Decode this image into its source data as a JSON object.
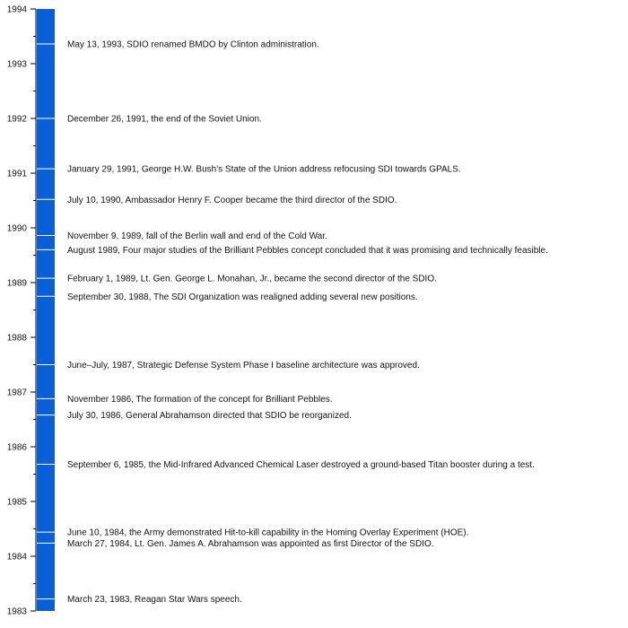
{
  "chart_data": {
    "type": "timeline",
    "title": "",
    "ylim": [
      1983,
      1994
    ],
    "bar_color": "#0a5fd6",
    "year_ticks": [
      "1983",
      "1984",
      "1985",
      "1986",
      "1987",
      "1988",
      "1989",
      "1990",
      "1991",
      "1992",
      "1993",
      "1994"
    ],
    "events": [
      {
        "date": 1993.36,
        "label": "May 13, 1993, SDIO renamed BMDO by Clinton administration."
      },
      {
        "date": 1992.0,
        "label": "December 26, 1991, the end of the Soviet Union."
      },
      {
        "date": 1991.08,
        "label": "January 29, 1991, George H.W. Bush's State of the Union address refocusing SDI towards GPALS."
      },
      {
        "date": 1990.52,
        "label": "July 10, 1990, Ambassador Henry F. Cooper became the third director of the SDIO."
      },
      {
        "date": 1989.86,
        "label": "November 9, 1989, fall of the Berlin wall and end of the Cold War."
      },
      {
        "date": 1989.6,
        "label": "August 1989, Four major studies of the Brilliant Pebbles concept concluded that it was promising and technically feasible."
      },
      {
        "date": 1989.08,
        "label": "February 1, 1989, Lt. Gen. George L. Monahan, Jr., became the second director of the SDIO."
      },
      {
        "date": 1988.75,
        "label": "September 30, 1988, The SDI Organization was realigned adding several new positions."
      },
      {
        "date": 1987.5,
        "label": "June–July, 1987, Strategic Defense System Phase I baseline architecture was approved."
      },
      {
        "date": 1986.88,
        "label": "November 1986, The formation of the concept for Brilliant Pebbles."
      },
      {
        "date": 1986.58,
        "label": "July 30, 1986, General Abrahamson directed that SDIO be reorganized."
      },
      {
        "date": 1985.68,
        "label": "September 6, 1985, the Mid-Infrared Advanced Chemical Laser destroyed a ground-based Titan booster during a test."
      },
      {
        "date": 1984.44,
        "label": "June 10, 1984, the Army demonstrated Hit-to-kill capability in the Homing Overlay Experiment (HOE)."
      },
      {
        "date": 1984.24,
        "label": "March 27, 1984, Lt. Gen. James A. Abrahamson was appointed as first Director of the SDIO."
      },
      {
        "date": 1983.22,
        "label": "March 23, 1983, Reagan Star Wars speech."
      }
    ]
  }
}
